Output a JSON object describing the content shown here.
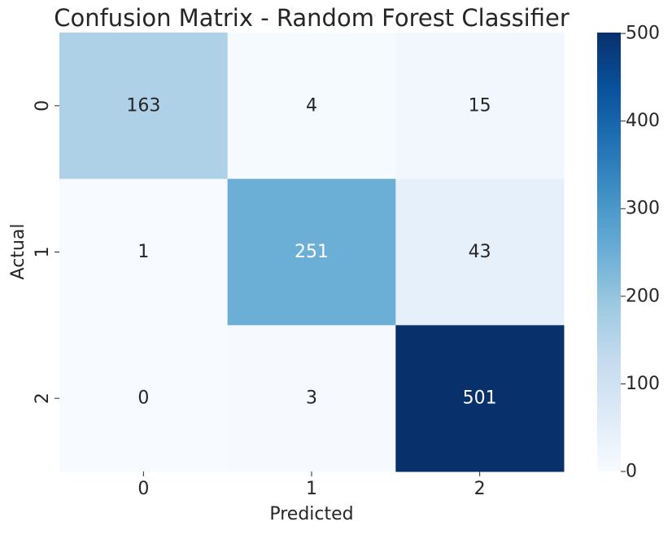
{
  "chart_data": {
    "type": "heatmap",
    "title": "Confusion Matrix - Random Forest Classifier",
    "xlabel": "Predicted",
    "ylabel": "Actual",
    "x_categories": [
      "0",
      "1",
      "2"
    ],
    "y_categories": [
      "0",
      "1",
      "2"
    ],
    "values": [
      [
        163,
        4,
        15
      ],
      [
        1,
        251,
        43
      ],
      [
        0,
        3,
        501
      ]
    ],
    "colormap": "Blues",
    "colormap_stops": [
      "#f7fbff",
      "#deebf7",
      "#c6dbef",
      "#9ecae1",
      "#6baed6",
      "#4292c6",
      "#2171b5",
      "#08519c",
      "#08306b"
    ],
    "vmin": 0,
    "vmax": 501,
    "colorbar": {
      "ticks": [
        0,
        100,
        200,
        300,
        400,
        500
      ]
    },
    "annotation_colors": {
      "dark_text": "#262626",
      "light_text": "#ffffff"
    }
  }
}
